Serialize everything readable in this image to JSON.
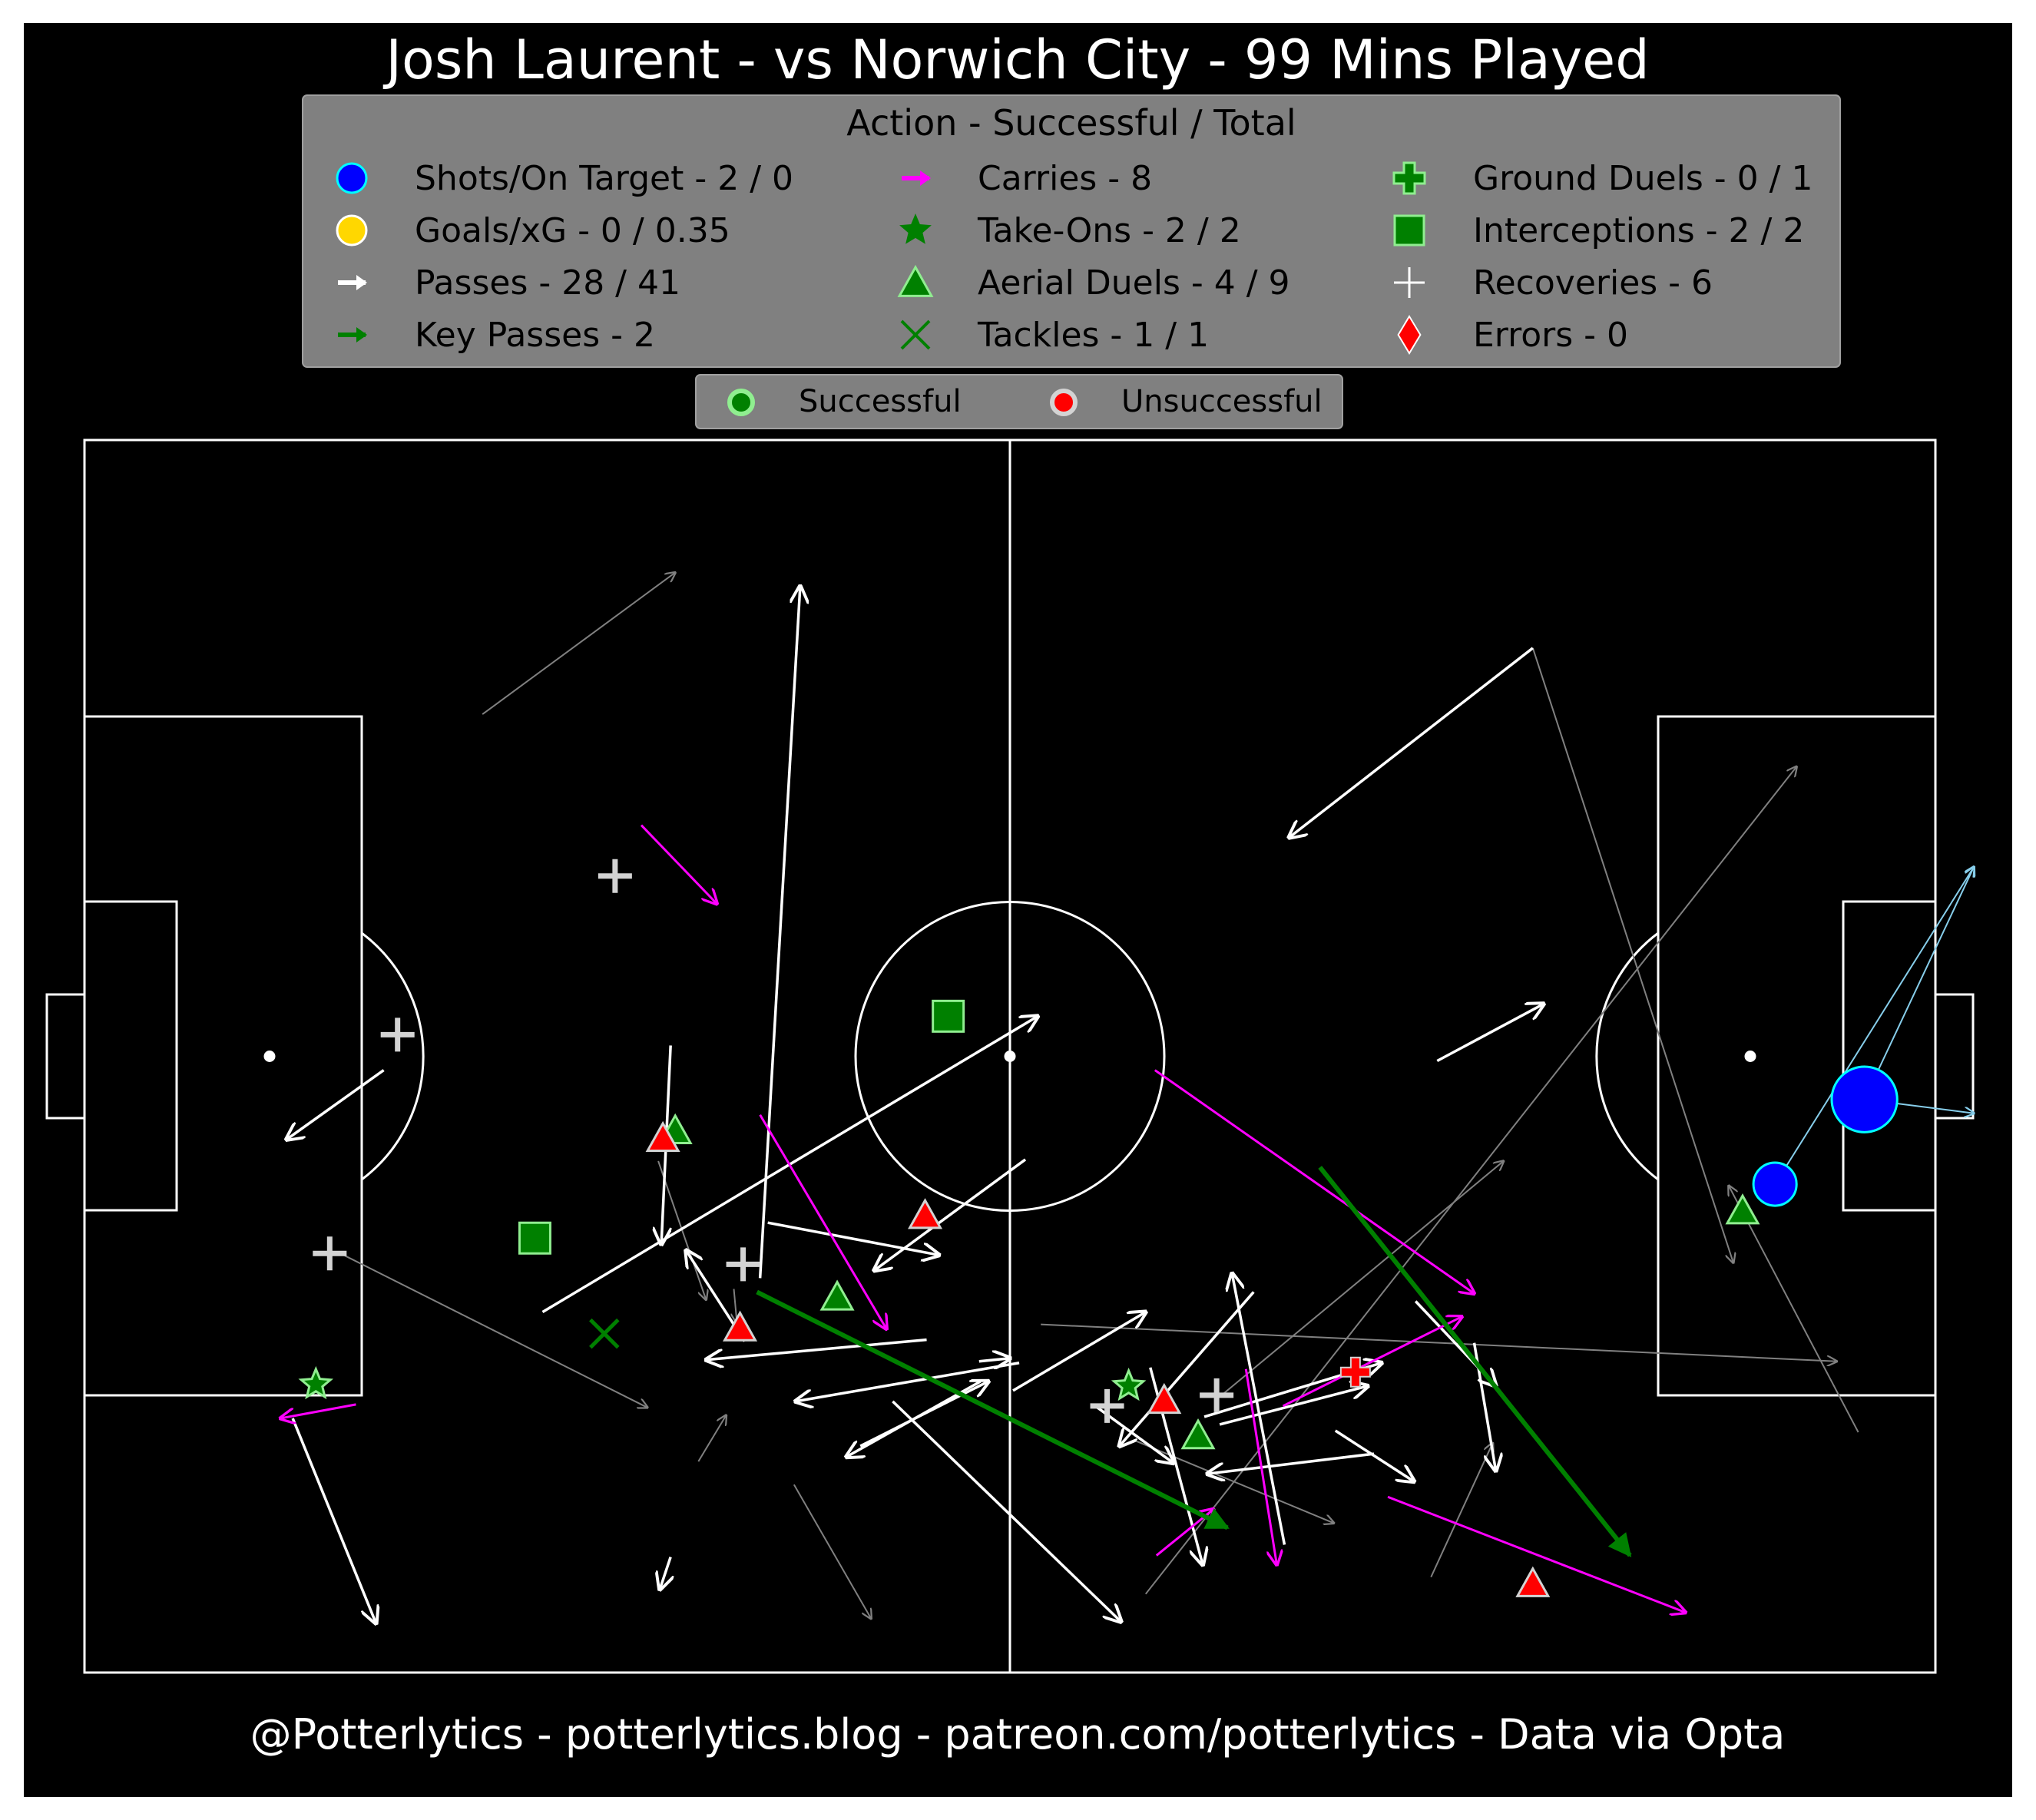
{
  "title": "Josh Laurent - vs Norwich City - 99 Mins Played",
  "footer": "@Potterlytics - potterlytics.blog - patreon.com/potterlytics - Data via Opta",
  "legend": {
    "title": "Action - Successful / Total",
    "entries": [
      {
        "label": "Shots/On Target - 2 / 0",
        "marker": "circle",
        "color": "#0000ff"
      },
      {
        "label": "Goals/xG - 0 / 0.35",
        "marker": "circle",
        "color": "#ffd700"
      },
      {
        "label": "Passes - 28 / 41",
        "marker": "arrow",
        "color": "#ffffff"
      },
      {
        "label": "Key Passes - 2",
        "marker": "arrow",
        "color": "#008000"
      },
      {
        "label": "Carries - 8",
        "marker": "arrow",
        "color": "#ff00ff"
      },
      {
        "label": "Take-Ons - 2 / 2",
        "marker": "star",
        "color": "#008000"
      },
      {
        "label": "Aerial Duels - 4 / 9",
        "marker": "triangle",
        "color": "#008000"
      },
      {
        "label": "Tackles - 1 / 1",
        "marker": "x",
        "color": "#008000"
      },
      {
        "label": "Ground Duels - 0 / 1",
        "marker": "pluscross",
        "color": "#008000"
      },
      {
        "label": "Interceptions - 2 / 2",
        "marker": "square",
        "color": "#008000"
      },
      {
        "label": "Recoveries - 6",
        "marker": "plus",
        "color": "#ffffff"
      },
      {
        "label": "Errors - 0",
        "marker": "diamond",
        "color": "#ff0000"
      }
    ],
    "outcome": {
      "successful": "Successful",
      "unsuccessful": "Unsuccessful"
    }
  },
  "colors": {
    "background": "#000000",
    "pitch_lines": "#ffffff",
    "legend_box": "#808080",
    "pass": "#ffffff",
    "pass_unsuccessful": "#808080",
    "key_pass": "#008000",
    "carry": "#ff00ff",
    "shot": "#0000ff",
    "shot_line": "#87ceeb",
    "successful": "#90ee90",
    "unsuccessful": "#ff0000"
  },
  "chart_data": {
    "type": "scatter",
    "pitch": {
      "length": 120,
      "width": 80,
      "attacking_direction": "left-to-right"
    },
    "passes_successful": [
      [
        19.4,
        39.1,
        13.1,
        34.6
      ],
      [
        38.0,
        40.7,
        37.4,
        27.8
      ],
      [
        43.8,
        25.6,
        46.4,
        70.5
      ],
      [
        29.7,
        23.4,
        61.8,
        42.6
      ],
      [
        44.3,
        29.2,
        55.4,
        27.1
      ],
      [
        60.6,
        20.1,
        46.1,
        17.6
      ],
      [
        54.6,
        21.6,
        40.3,
        20.3
      ],
      [
        61.0,
        33.3,
        51.2,
        26.1
      ],
      [
        13.5,
        16.5,
        18.9,
        3.2
      ],
      [
        60.2,
        18.3,
        68.8,
        23.4
      ],
      [
        42.8,
        21.5,
        39.0,
        27.4
      ],
      [
        50.3,
        14.7,
        58.6,
        18.9
      ],
      [
        38.0,
        7.5,
        37.3,
        5.4
      ],
      [
        52.4,
        17.6,
        67.2,
        3.3
      ],
      [
        58.0,
        20.2,
        60.0,
        20.4
      ],
      [
        58.1,
        18.9,
        49.4,
        14.0
      ],
      [
        65.4,
        17.4,
        70.6,
        13.6
      ],
      [
        69.1,
        19.8,
        72.5,
        7.0
      ],
      [
        72.6,
        16.6,
        84.1,
        20.1
      ],
      [
        77.8,
        8.3,
        74.4,
        25.9
      ],
      [
        73.6,
        16.1,
        83.2,
        18.6
      ],
      [
        83.6,
        14.2,
        72.8,
        12.9
      ],
      [
        86.3,
        24.1,
        91.5,
        18.6
      ],
      [
        90.1,
        21.4,
        91.5,
        13.1
      ],
      [
        87.7,
        39.7,
        94.6,
        43.4
      ],
      [
        93.9,
        66.5,
        78.1,
        54.2
      ],
      [
        81.1,
        15.7,
        86.2,
        12.4
      ],
      [
        75.8,
        24.7,
        67.1,
        14.7
      ]
    ],
    "passes_unsuccessful": [
      [
        25.8,
        62.2,
        38.3,
        71.4
      ],
      [
        37.2,
        33.2,
        40.3,
        24.2
      ],
      [
        42.1,
        24.9,
        42.3,
        22.7
      ],
      [
        39.8,
        13.7,
        41.6,
        16.7
      ],
      [
        46.0,
        12.2,
        51.0,
        3.5
      ],
      [
        16.6,
        27.2,
        36.5,
        17.2
      ],
      [
        62.0,
        22.6,
        113.6,
        20.2
      ],
      [
        73.6,
        17.9,
        92.0,
        33.2
      ],
      [
        68.0,
        15.1,
        81.0,
        9.7
      ],
      [
        68.8,
        5.1,
        111.0,
        58.8
      ],
      [
        87.3,
        6.2,
        91.3,
        14.9
      ],
      [
        93.9,
        66.5,
        106.9,
        26.6
      ],
      [
        115.0,
        15.6,
        106.6,
        31.6
      ]
    ],
    "key_passes": [
      [
        43.6,
        24.7,
        74.1,
        9.4
      ],
      [
        80.1,
        32.8,
        100.2,
        7.6
      ]
    ],
    "carries": [
      [
        36.1,
        55.0,
        41.0,
        49.9
      ],
      [
        17.6,
        17.4,
        12.7,
        16.5
      ],
      [
        43.8,
        36.2,
        52.0,
        22.3
      ],
      [
        69.4,
        39.1,
        90.1,
        24.6
      ],
      [
        77.7,
        17.3,
        89.3,
        23.1
      ],
      [
        69.5,
        7.6,
        73.2,
        10.6
      ],
      [
        75.3,
        19.7,
        77.3,
        7.0
      ],
      [
        84.5,
        11.4,
        103.8,
        3.9
      ]
    ],
    "shots": [
      {
        "x": 115.4,
        "y": 37.2,
        "xg": 0.3,
        "end_x": 122.5,
        "end_y": 52.3,
        "end_x2": 122.5,
        "end_y2": 36.3
      },
      {
        "x": 109.6,
        "y": 31.7,
        "xg": 0.05,
        "end_x": 122.5,
        "end_y": 52.3
      }
    ],
    "take_ons": [
      {
        "x": 15.0,
        "y": 18.7,
        "successful": true
      },
      {
        "x": 67.7,
        "y": 18.6,
        "successful": true
      }
    ],
    "aerial_duels": [
      {
        "x": 38.3,
        "y": 35.1,
        "successful": true
      },
      {
        "x": 48.8,
        "y": 24.3,
        "successful": true
      },
      {
        "x": 72.2,
        "y": 15.3,
        "successful": true
      },
      {
        "x": 107.5,
        "y": 29.9,
        "successful": true
      },
      {
        "x": 42.5,
        "y": 22.3,
        "successful": false
      },
      {
        "x": 54.5,
        "y": 29.6,
        "successful": false
      },
      {
        "x": 70.0,
        "y": 17.6,
        "successful": false
      },
      {
        "x": 93.9,
        "y": 5.7,
        "successful": false
      },
      {
        "x": 37.5,
        "y": 34.6,
        "successful": false
      }
    ],
    "tackles": [
      {
        "x": 33.7,
        "y": 22.0,
        "successful": true
      }
    ],
    "ground_duels": [
      {
        "x": 82.4,
        "y": 19.5,
        "successful": false
      }
    ],
    "interceptions": [
      {
        "x": 29.2,
        "y": 28.2,
        "successful": true
      },
      {
        "x": 56.0,
        "y": 42.6,
        "successful": true
      }
    ],
    "recoveries": [
      [
        34.4,
        51.7
      ],
      [
        20.3,
        41.4
      ],
      [
        15.9,
        27.2
      ],
      [
        42.7,
        26.5
      ],
      [
        66.3,
        17.3
      ],
      [
        73.4,
        18.0
      ]
    ],
    "errors": []
  }
}
